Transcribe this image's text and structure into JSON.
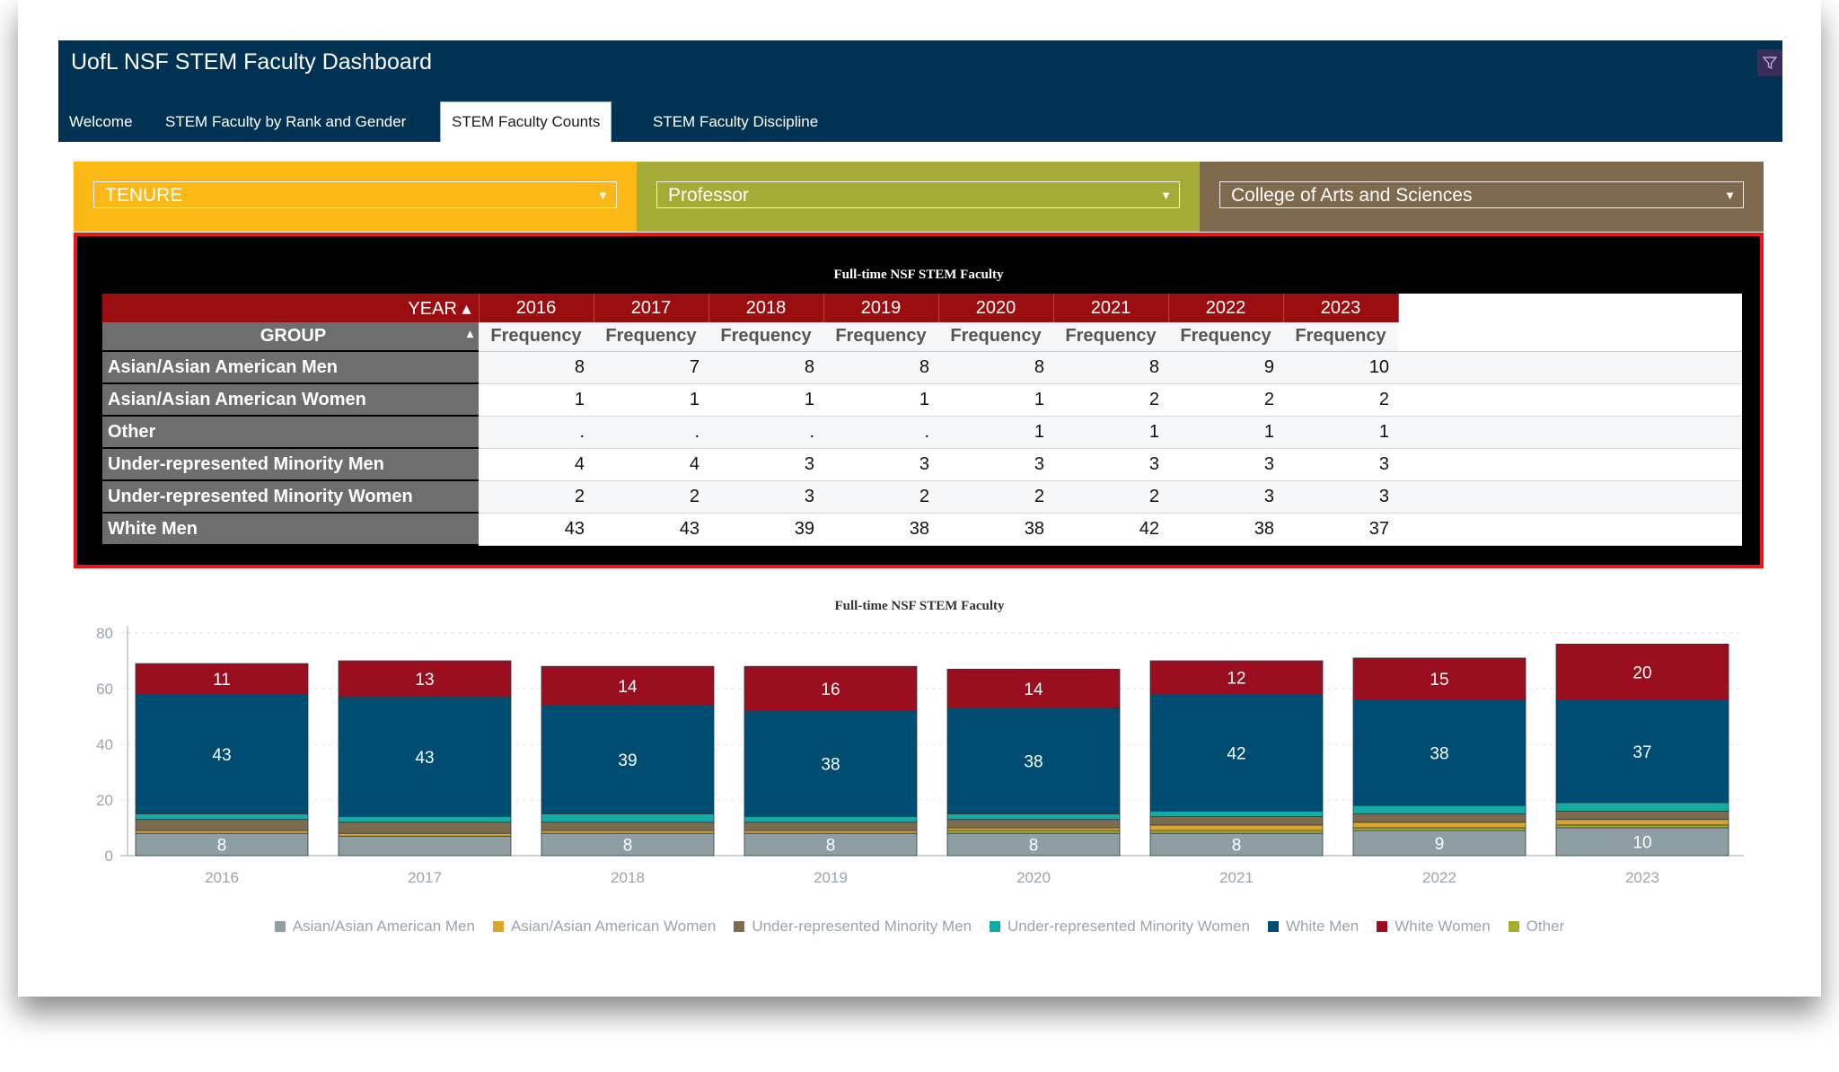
{
  "header": {
    "title": "UofL NSF STEM Faculty Dashboard",
    "tabs": [
      {
        "label": "Welcome"
      },
      {
        "label": "STEM Faculty by Rank and Gender"
      },
      {
        "label": "STEM Faculty Counts"
      },
      {
        "label": "STEM Faculty Discipline"
      }
    ],
    "active_tab": "STEM Faculty Counts"
  },
  "filters": [
    {
      "value": "TENURE",
      "color": "#fcb814"
    },
    {
      "value": "Professor",
      "color": "#a5ac38"
    },
    {
      "value": "College of Arts and Sciences",
      "color": "#7f6a4e"
    }
  ],
  "table": {
    "title": "Full-time NSF STEM Faculty",
    "year_header": "YEAR",
    "group_header": "GROUP",
    "years": [
      "2016",
      "2017",
      "2018",
      "2019",
      "2020",
      "2021",
      "2022",
      "2023"
    ],
    "measure": "Frequency",
    "rows": [
      {
        "group": "Asian/Asian American Men",
        "values": [
          "8",
          "7",
          "8",
          "8",
          "8",
          "8",
          "9",
          "10"
        ]
      },
      {
        "group": "Asian/Asian American Women",
        "values": [
          "1",
          "1",
          "1",
          "1",
          "1",
          "2",
          "2",
          "2"
        ]
      },
      {
        "group": "Other",
        "values": [
          ".",
          ".",
          ".",
          ".",
          "1",
          "1",
          "1",
          "1"
        ]
      },
      {
        "group": "Under-represented Minority Men",
        "values": [
          "4",
          "4",
          "3",
          "3",
          "3",
          "3",
          "3",
          "3"
        ]
      },
      {
        "group": "Under-represented Minority Women",
        "values": [
          "2",
          "2",
          "3",
          "2",
          "2",
          "2",
          "3",
          "3"
        ]
      },
      {
        "group": "White Men",
        "values": [
          "43",
          "43",
          "39",
          "38",
          "38",
          "42",
          "38",
          "37"
        ]
      }
    ]
  },
  "chart_data": {
    "type": "bar",
    "stacked": true,
    "title": "Full-time NSF STEM Faculty",
    "categories": [
      "2016",
      "2017",
      "2018",
      "2019",
      "2020",
      "2021",
      "2022",
      "2023"
    ],
    "ylim": [
      0,
      80
    ],
    "yticks": [
      0,
      20,
      40,
      60,
      80
    ],
    "grid": true,
    "legend": "bottom",
    "series": [
      {
        "name": "Asian/Asian American Men",
        "color": "#8f9ea3",
        "values": [
          8,
          7,
          8,
          8,
          8,
          8,
          9,
          10
        ],
        "labels": [
          "8",
          "",
          "8",
          "8",
          "8",
          "8",
          "9",
          "10"
        ]
      },
      {
        "name": "Asian/Asian American Women",
        "color": "#d9a52c",
        "values": [
          1,
          1,
          1,
          1,
          1,
          2,
          2,
          2
        ],
        "labels": [
          "",
          "",
          "",
          "",
          "",
          "",
          "",
          ""
        ]
      },
      {
        "name": "Under-represented Minority Men",
        "color": "#7d6b50",
        "values": [
          4,
          4,
          3,
          3,
          3,
          3,
          3,
          3
        ],
        "labels": [
          "",
          "",
          "",
          "",
          "",
          "",
          "",
          ""
        ]
      },
      {
        "name": "Under-represented Minority Women",
        "color": "#13aba3",
        "values": [
          2,
          2,
          3,
          2,
          2,
          2,
          3,
          3
        ],
        "labels": [
          "",
          "",
          "",
          "",
          "",
          "",
          "",
          ""
        ]
      },
      {
        "name": "White Men",
        "color": "#004d73",
        "values": [
          43,
          43,
          39,
          38,
          38,
          42,
          38,
          37
        ],
        "labels": [
          "43",
          "43",
          "39",
          "38",
          "38",
          "42",
          "38",
          "37"
        ]
      },
      {
        "name": "White Women",
        "color": "#9a0e20",
        "values": [
          11,
          13,
          14,
          16,
          14,
          12,
          15,
          20
        ],
        "labels": [
          "11",
          "13",
          "14",
          "16",
          "14",
          "12",
          "15",
          "20"
        ]
      },
      {
        "name": "Other",
        "color": "#a5ad2c",
        "values": [
          0,
          0,
          0,
          0,
          1,
          1,
          1,
          1
        ],
        "labels": [
          "",
          "",
          "",
          "",
          "",
          "",
          "",
          ""
        ]
      }
    ],
    "legend_order": [
      "Asian/Asian American Men",
      "Asian/Asian American Women",
      "Under-represented Minority Men",
      "Under-represented Minority Women",
      "White Men",
      "White Women",
      "Other"
    ],
    "stack_order": [
      "Asian/Asian American Men",
      "Other",
      "Asian/Asian American Women",
      "Under-represented Minority Men",
      "Under-represented Minority Women",
      "White Men",
      "White Women"
    ]
  }
}
